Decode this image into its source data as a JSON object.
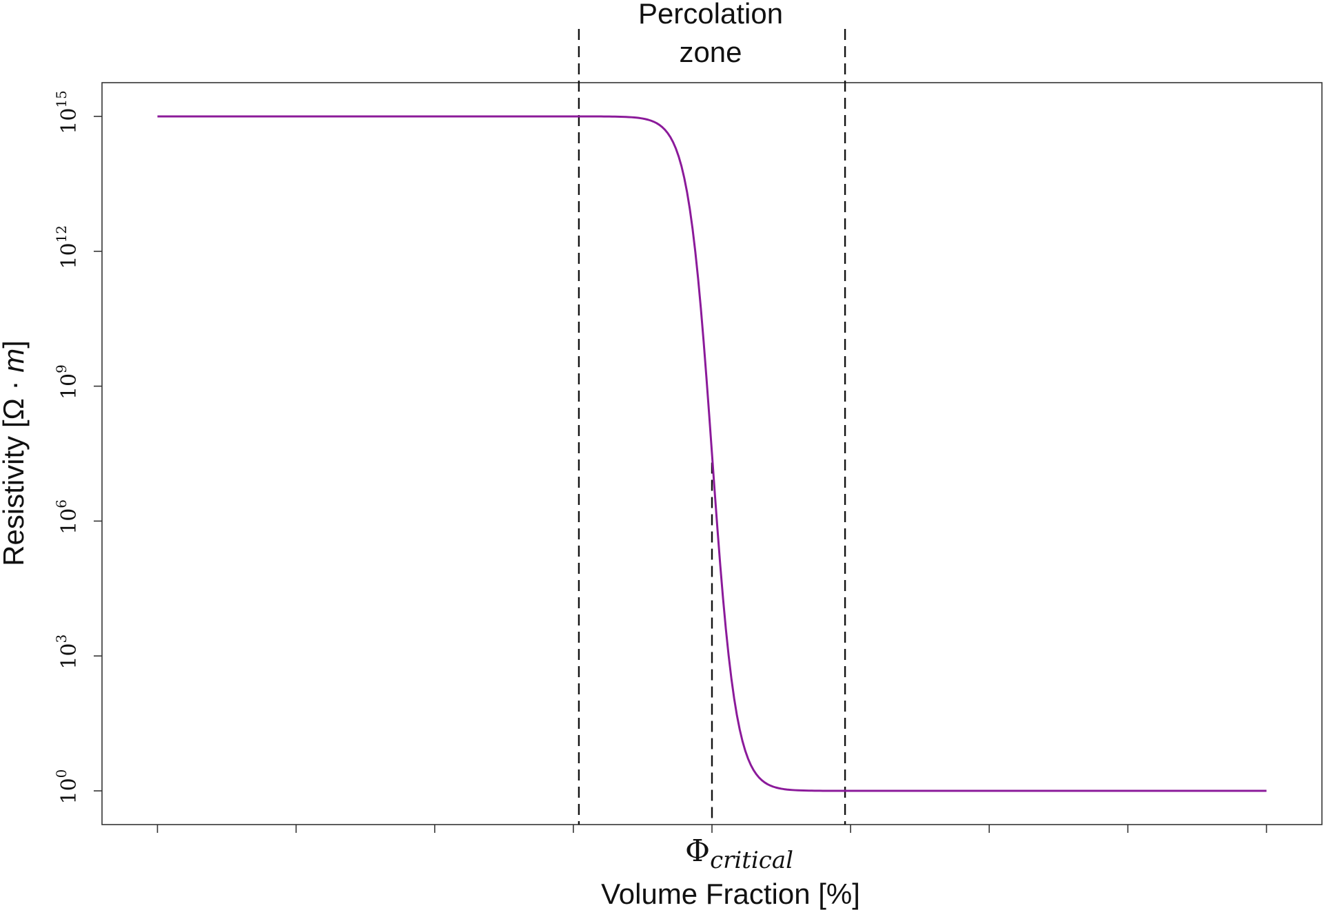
{
  "chart_data": {
    "type": "line",
    "title": "",
    "xlabel": "Volume Fraction [%]",
    "ylabel_prefix": "Resistivity [Ω · ",
    "ylabel_var": "m",
    "ylabel_suffix": "]",
    "yscale": "log",
    "ylim_exponent": [
      -0.75,
      15.75
    ],
    "xlim": [
      -0.4,
      8.4
    ],
    "x_ticks": [
      0,
      1,
      2,
      3,
      4,
      5,
      6,
      7,
      8
    ],
    "y_ticks": [
      {
        "base": "10",
        "exp": "15",
        "value": 15
      },
      {
        "base": "10",
        "exp": "12",
        "value": 12
      },
      {
        "base": "10",
        "exp": "9",
        "value": 9
      },
      {
        "base": "10",
        "exp": "6",
        "value": 6
      },
      {
        "base": "10",
        "exp": "3",
        "value": 3
      },
      {
        "base": "10",
        "exp": "0",
        "value": 0
      }
    ],
    "series": [
      {
        "color": "#8b1a9a",
        "x_range": [
          0,
          8
        ],
        "center": 4.0,
        "steepness": 11.5,
        "log10_high": 15,
        "log10_low": 0
      }
    ],
    "vlines": [
      {
        "x": 3.04,
        "style": "dashed",
        "extends_above": true
      },
      {
        "x": 4.0,
        "style": "dashed",
        "extends_above": false
      },
      {
        "x": 4.96,
        "style": "dashed",
        "extends_above": true
      }
    ],
    "annotations": {
      "zone_line1": "Percolation",
      "zone_line2": "zone",
      "phi_symbol": "Φ",
      "phi_sub": "critical"
    },
    "grid": false
  }
}
